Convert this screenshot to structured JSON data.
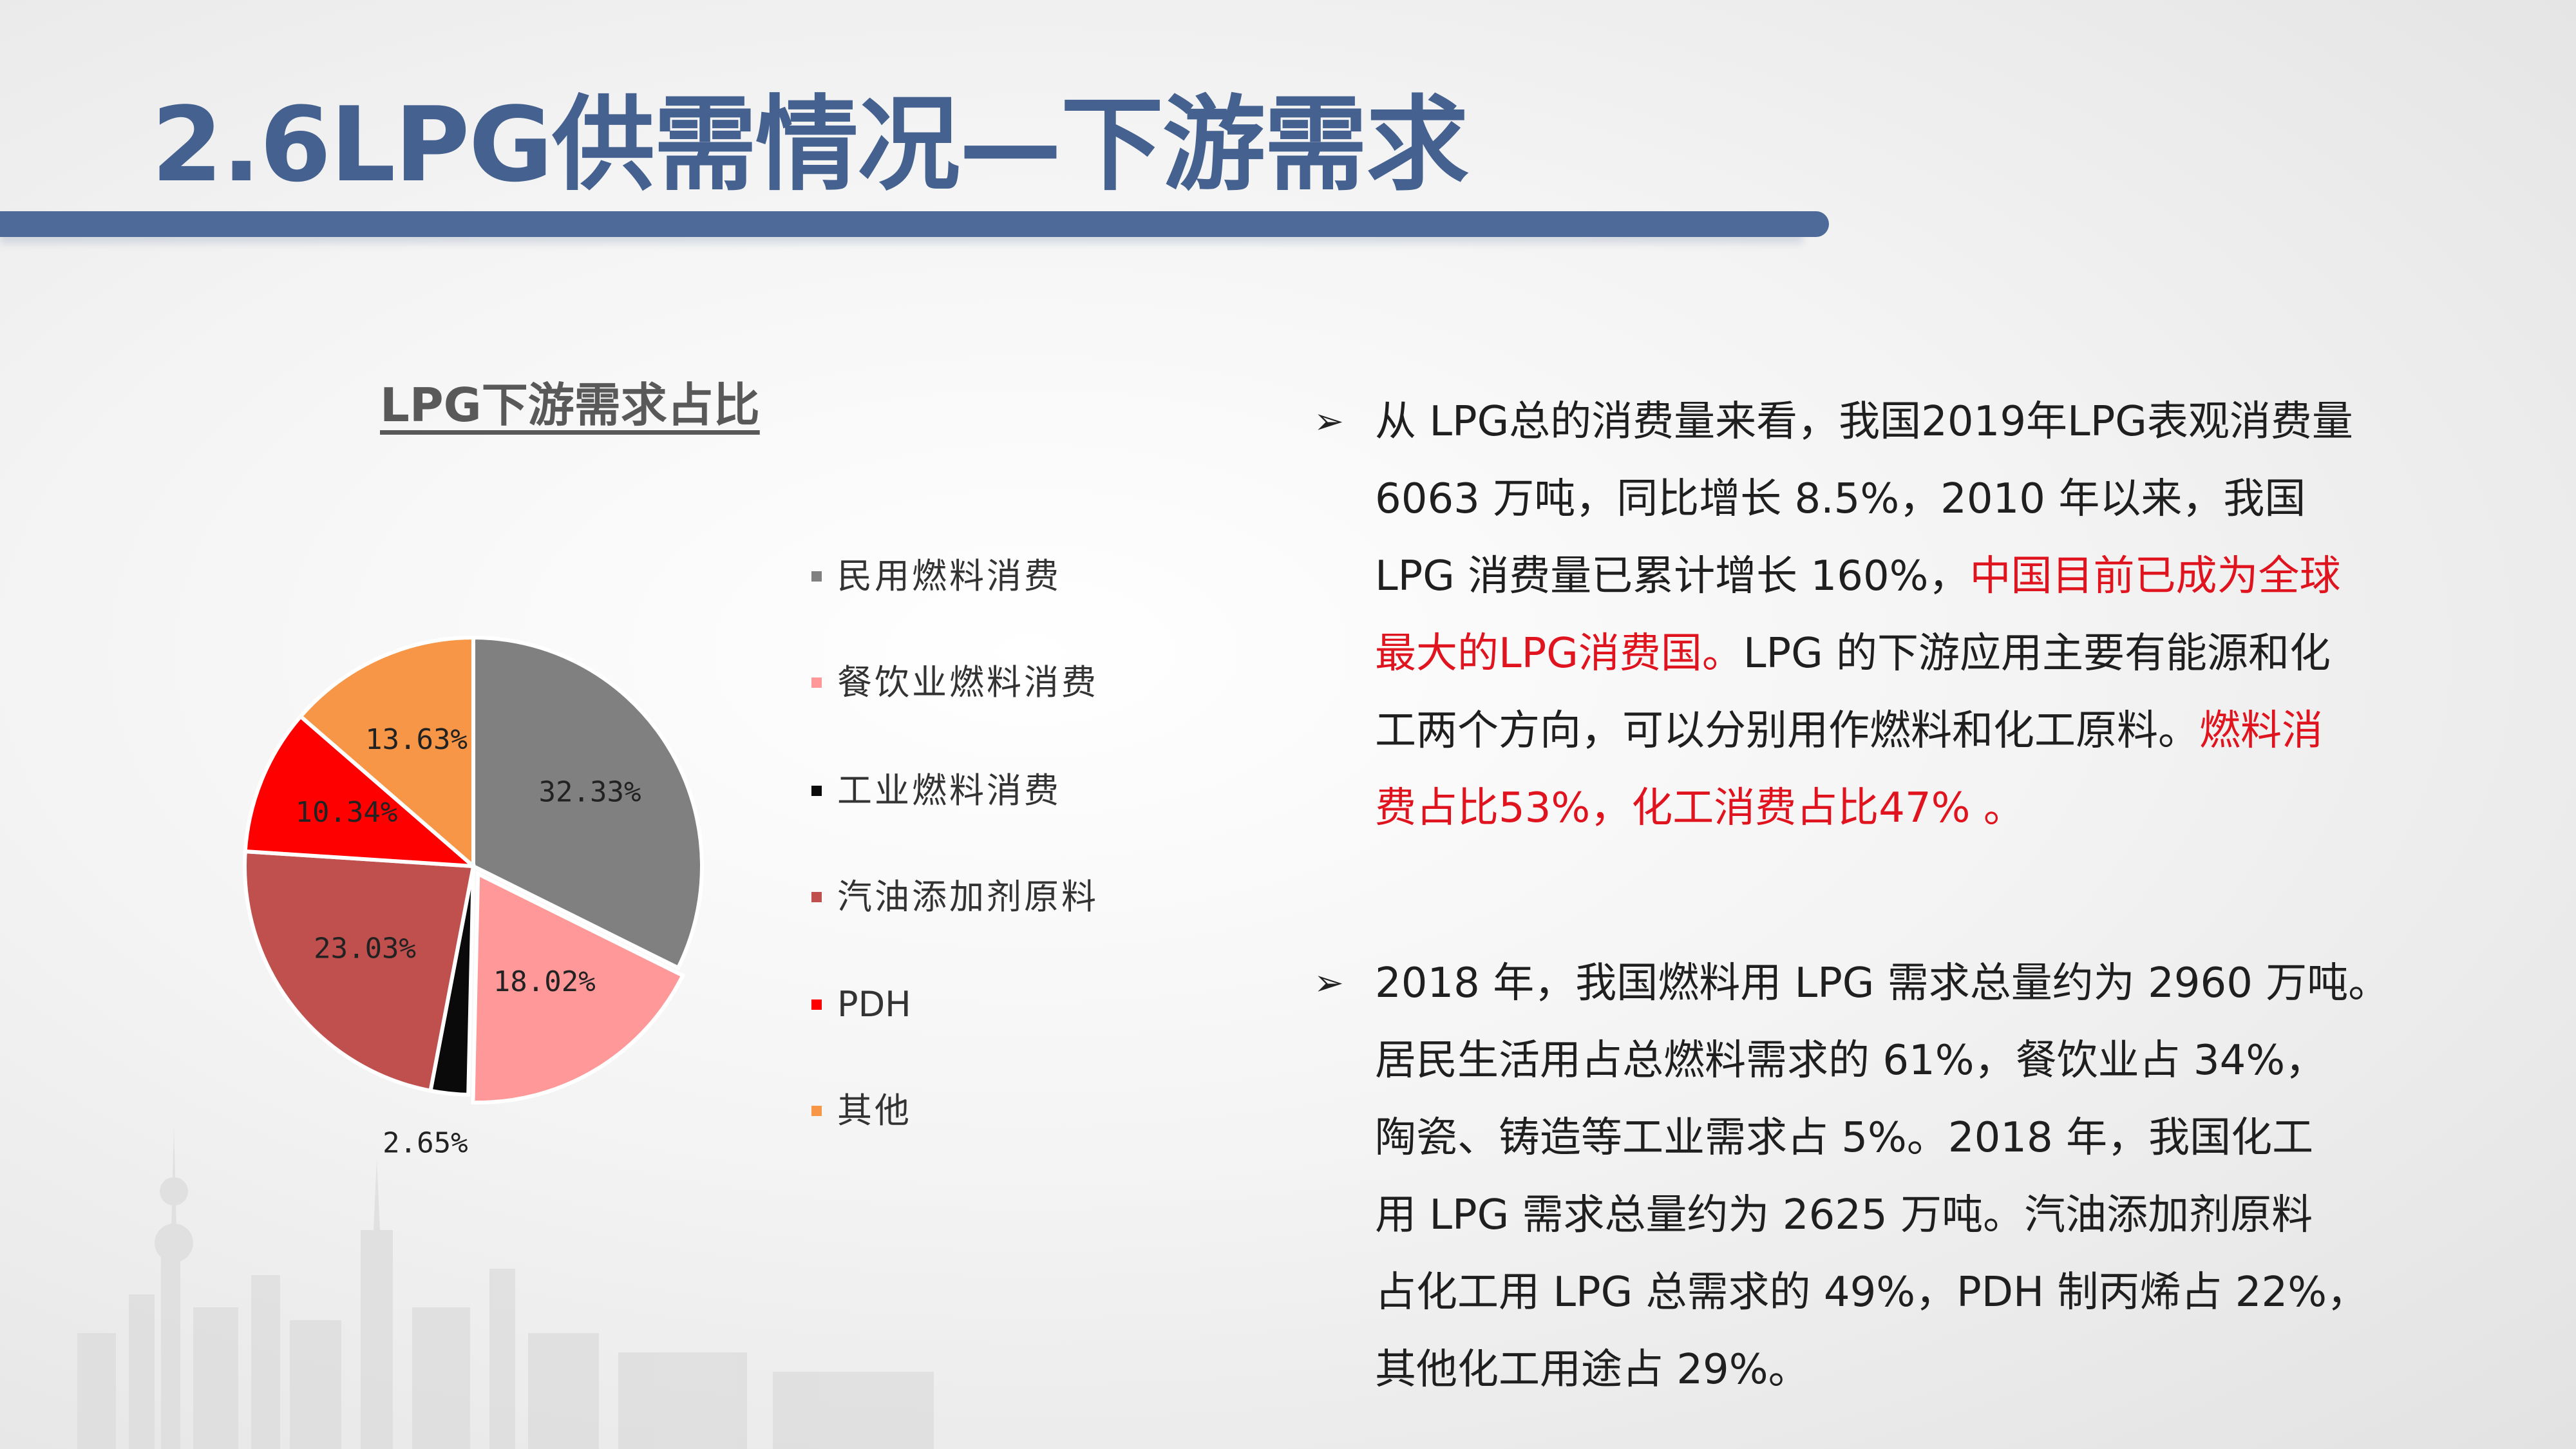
{
  "page": {
    "title": "2.6LPG供需情况—下游需求",
    "accent_color": "#44618f"
  },
  "chart_data": {
    "type": "pie",
    "title": "LPG下游需求占比",
    "legend_position": "right",
    "slices": [
      {
        "name": "民用燃料消费",
        "value": 32.33,
        "label": "32.33%",
        "color": "#808080"
      },
      {
        "name": "餐饮业燃料消费",
        "value": 18.02,
        "label": "18.02%",
        "color": "#ff9999"
      },
      {
        "name": "工业燃料消费",
        "value": 2.65,
        "label": "2.65%",
        "color": "#0a0a0a"
      },
      {
        "name": "汽油添加剂原料",
        "value": 23.03,
        "label": "23.03%",
        "color": "#c0504d"
      },
      {
        "name": "PDH",
        "value": 10.34,
        "label": "10.34%",
        "color": "#ff0000"
      },
      {
        "name": "其他",
        "value": 13.63,
        "label": "13.63%",
        "color": "#f79646"
      }
    ]
  },
  "legend": {
    "items": [
      "民用燃料消费",
      "餐饮业燃料消费",
      "工业燃料消费",
      "汽油添加剂原料",
      "PDH",
      "其他"
    ]
  },
  "bullets": {
    "marker": "➢",
    "p1": {
      "part1": "从 LPG总的消费量来看，我国2019年LPG表观消费量\n6063 万吨，同比增长 8.5%，2010 年以来，我国\nLPG 消费量已累计增长 160%，",
      "part2": "中国目前已成为全球\n最大的LPG消费国。",
      "part3": "LPG 的下游应用主要有能源和化\n工两个方向，可以分别用作燃料和化工原料。",
      "part4": "燃料消\n费占比53%，化工消费占比47% 。"
    },
    "p2": "2018 年，我国燃料用 LPG 需求总量约为 2960 万吨。\n居民生活用占总燃料需求的 61%，餐饮业占 34%，\n陶瓷、铸造等工业需求占 5%。2018 年，我国化工\n用 LPG 需求总量约为 2625 万吨。汽油添加剂原料\n占化工用 LPG 总需求的 49%，PDH 制丙烯占 22%，\n其他化工用途占 29%。"
  }
}
